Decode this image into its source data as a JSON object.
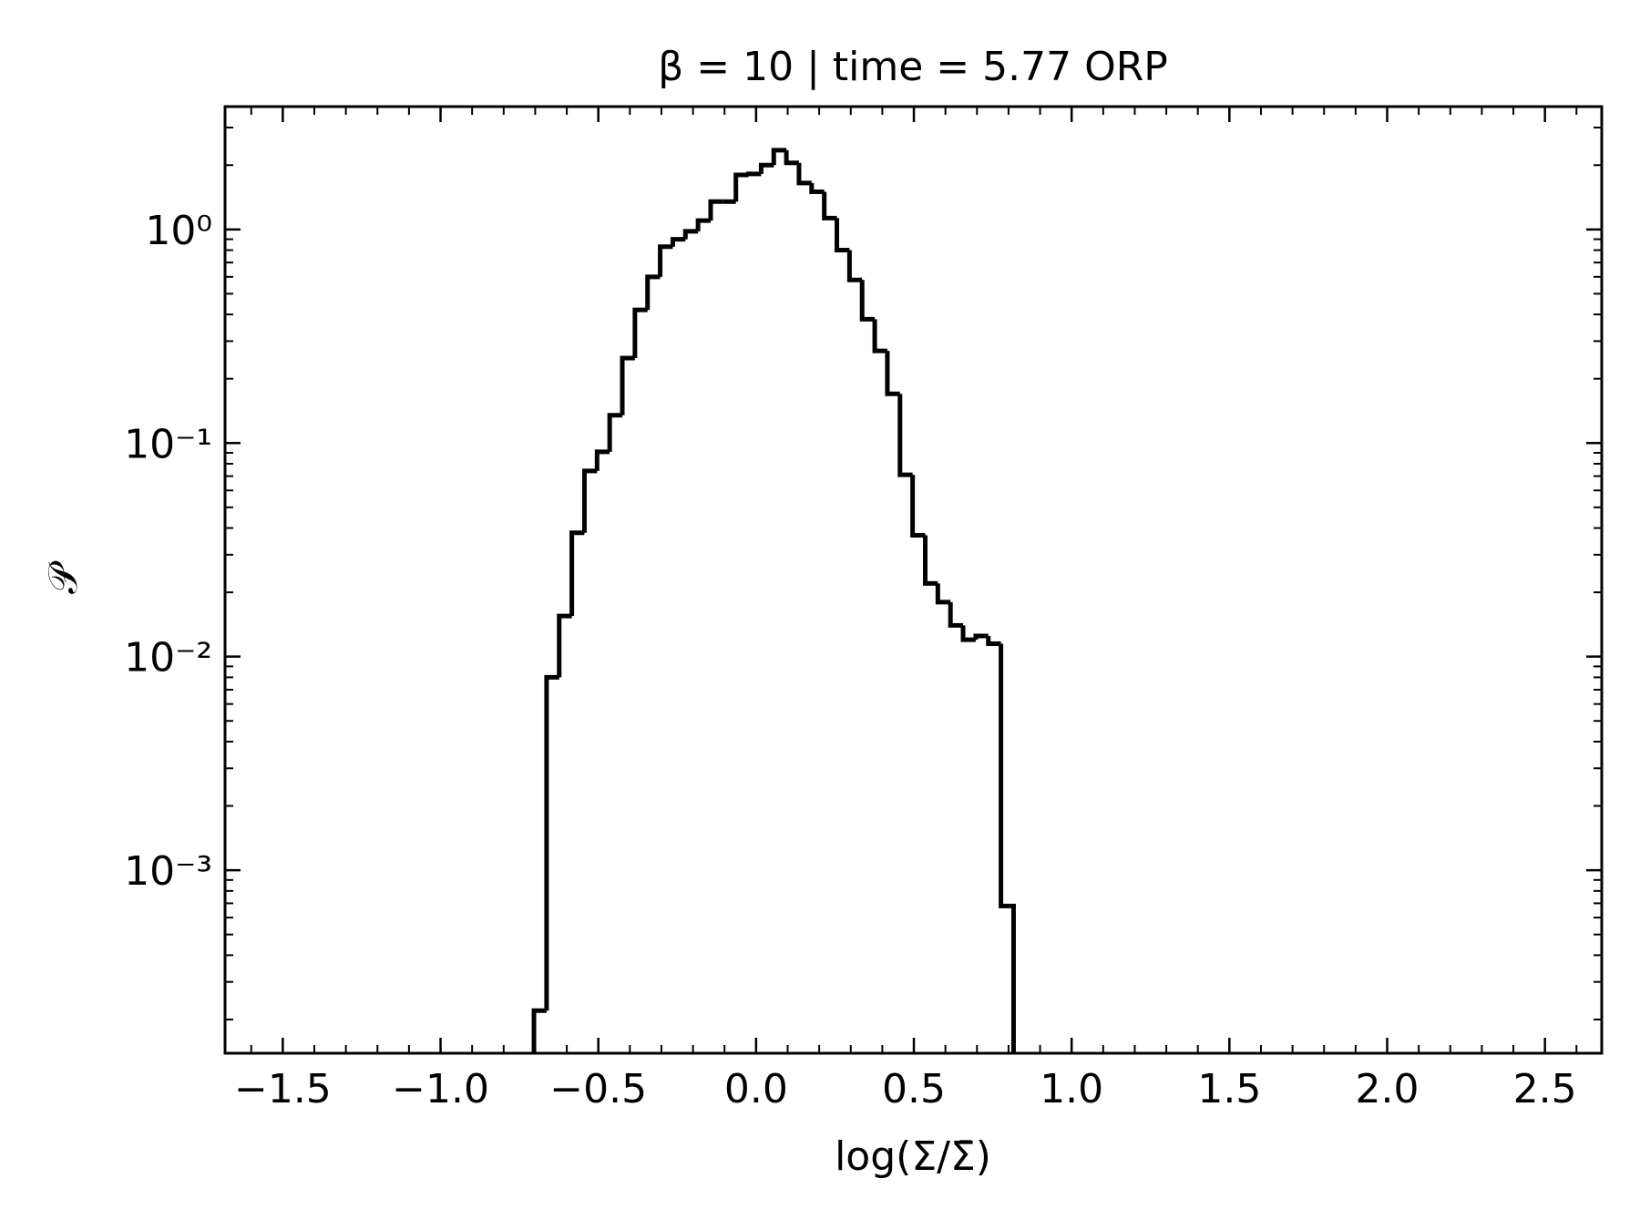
{
  "chart_data": {
    "type": "histogram",
    "title": "β = 10 | time = 5.77 ORP",
    "xlabel": "log(Σ/Σ̄)",
    "ylabel": "𝒫",
    "bins": [
      -0.704,
      -0.664,
      -0.624,
      -0.584,
      -0.544,
      -0.504,
      -0.464,
      -0.424,
      -0.384,
      -0.344,
      -0.304,
      -0.264,
      -0.224,
      -0.184,
      -0.144,
      -0.104,
      -0.064,
      -0.024,
      0.016,
      0.056,
      0.096,
      0.136,
      0.176,
      0.216,
      0.256,
      0.296,
      0.336,
      0.376,
      0.416,
      0.456,
      0.496,
      0.536,
      0.576,
      0.616,
      0.656,
      0.696,
      0.736,
      0.776,
      0.816
    ],
    "values": [
      0.00022,
      0.008,
      0.0155,
      0.038,
      0.074,
      0.091,
      0.135,
      0.25,
      0.42,
      0.6,
      0.83,
      0.9,
      0.98,
      1.1,
      1.35,
      1.35,
      1.8,
      1.82,
      2.0,
      2.35,
      2.05,
      1.65,
      1.5,
      1.13,
      0.8,
      0.58,
      0.38,
      0.27,
      0.17,
      0.071,
      0.037,
      0.022,
      0.018,
      0.014,
      0.012,
      0.0125,
      0.0115,
      0.00068
    ],
    "color": "#000000",
    "xlim": [
      -1.683,
      2.68
    ],
    "xticks": [
      {
        "value": -1.5,
        "label": "−1.5"
      },
      {
        "value": -1.0,
        "label": "−1.0"
      },
      {
        "value": -0.5,
        "label": "−0.5"
      },
      {
        "value": 0,
        "label": "0.0"
      },
      0.5,
      {
        "value": 1,
        "label": "1.0"
      },
      1.5,
      {
        "value": 2,
        "label": "2.0"
      },
      2.5
    ],
    "ylim": [
      0.000139,
      3.76
    ],
    "yscale": "log",
    "yticks": [
      {
        "value": 1,
        "label": "10⁰"
      },
      {
        "value": 0.1,
        "label": "10⁻¹"
      },
      {
        "value": 0.01,
        "label": "10⁻²"
      },
      {
        "value": 0.001,
        "label": "10⁻³"
      }
    ]
  }
}
